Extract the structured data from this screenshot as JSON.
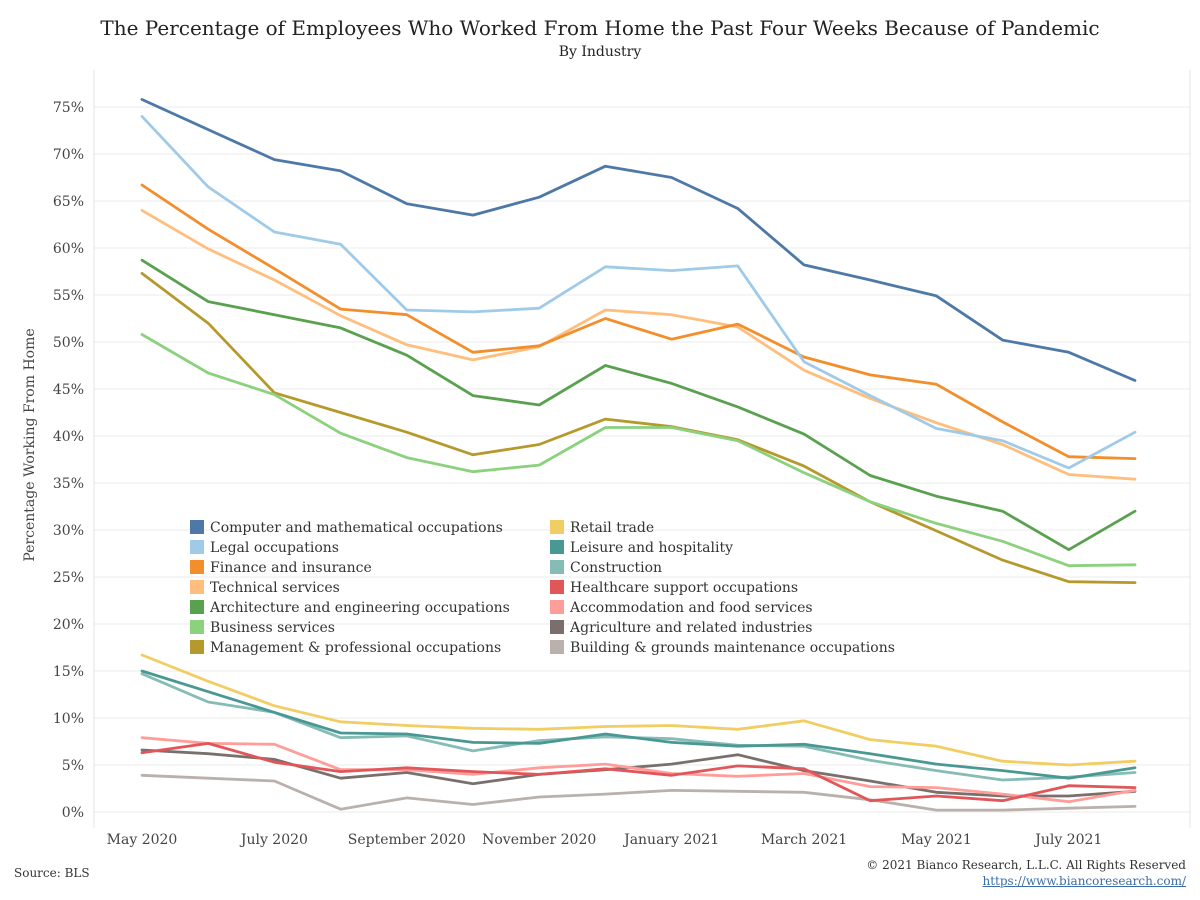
{
  "header": {
    "title": "The Percentage of Employees Who Worked From Home the Past Four Weeks Because of Pandemic",
    "subtitle": "By Industry"
  },
  "footer": {
    "source": "Source: BLS",
    "copyright": "© 2021 Bianco Research, L.L.C. All Rights Reserved",
    "url": "https://www.biancoresearch.com/"
  },
  "chart_data": {
    "type": "line",
    "title": "The Percentage of Employees Who Worked From Home the Past Four Weeks Because of Pandemic",
    "subtitle": "By Industry",
    "xlabel": "",
    "ylabel": "Percentage Working From Home",
    "x": [
      "2020-05",
      "2020-06",
      "2020-07",
      "2020-08",
      "2020-09",
      "2020-10",
      "2020-11",
      "2020-12",
      "2021-01",
      "2021-02",
      "2021-03",
      "2021-04",
      "2021-05",
      "2021-06",
      "2021-07",
      "2021-08"
    ],
    "x_tick_labels": [
      {
        "x": "2020-05",
        "label": "May 2020"
      },
      {
        "x": "2020-07",
        "label": "July 2020"
      },
      {
        "x": "2020-09",
        "label": "September 2020"
      },
      {
        "x": "2020-11",
        "label": "November 2020"
      },
      {
        "x": "2021-01",
        "label": "January 2021"
      },
      {
        "x": "2021-03",
        "label": "March 2021"
      },
      {
        "x": "2021-05",
        "label": "May 2021"
      },
      {
        "x": "2021-07",
        "label": "July 2021"
      }
    ],
    "y_ticks": [
      0,
      5,
      10,
      15,
      20,
      25,
      30,
      35,
      40,
      45,
      50,
      55,
      60,
      65,
      70,
      75
    ],
    "y_tick_labels": [
      "0%",
      "5%",
      "10%",
      "15%",
      "20%",
      "25%",
      "30%",
      "35%",
      "40%",
      "45%",
      "50%",
      "55%",
      "60%",
      "65%",
      "70%",
      "75%"
    ],
    "ylim": [
      0,
      80
    ],
    "grid": "horizontal",
    "legend_position": "center-left, two columns",
    "series": [
      {
        "name": "Computer and mathematical occupations",
        "color": "#4e79a7",
        "values": [
          75.8,
          72.6,
          69.4,
          68.2,
          64.7,
          63.5,
          65.4,
          68.7,
          67.5,
          64.2,
          58.2,
          56.6,
          54.9,
          50.2,
          48.9,
          45.9
        ]
      },
      {
        "name": "Legal occupations",
        "color": "#a0cbe8",
        "values": [
          74.0,
          66.5,
          61.7,
          60.4,
          53.4,
          53.2,
          53.6,
          58.0,
          57.6,
          58.1,
          47.9,
          44.3,
          40.8,
          39.5,
          36.6,
          40.4
        ]
      },
      {
        "name": "Finance and insurance",
        "color": "#f28e2b",
        "values": [
          66.7,
          62.0,
          57.8,
          53.5,
          52.9,
          48.9,
          49.6,
          52.5,
          50.3,
          51.9,
          48.4,
          46.5,
          45.5,
          41.5,
          37.8,
          37.6
        ]
      },
      {
        "name": "Technical services",
        "color": "#ffbe7d",
        "values": [
          64.0,
          59.9,
          56.6,
          52.8,
          49.7,
          48.1,
          49.5,
          53.4,
          52.9,
          51.6,
          47.0,
          44.0,
          41.4,
          39.1,
          35.9,
          35.4
        ]
      },
      {
        "name": "Architecture and engineering occupations",
        "color": "#59a14f",
        "values": [
          58.7,
          54.3,
          52.9,
          51.5,
          48.6,
          44.3,
          43.3,
          47.5,
          45.6,
          43.1,
          40.2,
          35.8,
          33.6,
          32.0,
          27.9,
          32.0
        ]
      },
      {
        "name": "Business services",
        "color": "#8cd17d",
        "values": [
          50.8,
          46.7,
          44.4,
          40.3,
          37.7,
          36.2,
          36.9,
          40.9,
          40.9,
          39.5,
          36.1,
          33.0,
          30.7,
          28.8,
          26.2,
          26.3
        ]
      },
      {
        "name": "Management & professional occupations",
        "color": "#b6992d",
        "values": [
          57.3,
          52.0,
          44.6,
          42.5,
          40.4,
          38.0,
          39.1,
          41.8,
          41.0,
          39.6,
          36.8,
          33.0,
          29.9,
          26.8,
          24.5,
          24.4
        ]
      },
      {
        "name": "Retail trade",
        "color": "#f1ce63",
        "values": [
          16.7,
          13.9,
          11.3,
          9.6,
          9.2,
          8.9,
          8.8,
          9.1,
          9.2,
          8.8,
          9.7,
          7.7,
          7.0,
          5.4,
          5.0,
          5.4
        ]
      },
      {
        "name": "Leisure and hospitality",
        "color": "#499894",
        "values": [
          15.0,
          12.8,
          10.6,
          8.4,
          8.3,
          7.4,
          7.3,
          8.3,
          7.4,
          7.0,
          7.2,
          6.2,
          5.1,
          4.4,
          3.6,
          4.7
        ]
      },
      {
        "name": "Construction",
        "color": "#86bcb6",
        "values": [
          14.7,
          11.7,
          10.6,
          7.9,
          8.1,
          6.5,
          7.6,
          8.0,
          7.8,
          7.1,
          7.0,
          5.5,
          4.4,
          3.4,
          3.7,
          4.2
        ]
      },
      {
        "name": "Healthcare support occupations",
        "color": "#e15759",
        "values": [
          6.3,
          7.3,
          5.3,
          4.3,
          4.7,
          4.3,
          4.0,
          4.6,
          3.9,
          4.9,
          4.6,
          1.2,
          1.7,
          1.2,
          2.8,
          2.6
        ]
      },
      {
        "name": "Accommodation and food services",
        "color": "#ff9d9a",
        "values": [
          7.9,
          7.3,
          7.2,
          4.5,
          4.5,
          4.0,
          4.7,
          5.1,
          4.1,
          3.8,
          4.1,
          2.7,
          2.6,
          1.9,
          1.1,
          2.3
        ]
      },
      {
        "name": "Agriculture and related industries",
        "color": "#79706e",
        "values": [
          6.6,
          6.2,
          5.6,
          3.6,
          4.2,
          3.0,
          4.0,
          4.5,
          5.1,
          6.1,
          4.4,
          3.3,
          2.1,
          1.7,
          1.7,
          2.2
        ]
      },
      {
        "name": "Building & grounds maintenance occupations",
        "color": "#bab0ac",
        "values": [
          3.9,
          3.6,
          3.3,
          0.3,
          1.5,
          0.8,
          1.6,
          1.9,
          2.3,
          2.2,
          2.1,
          1.3,
          0.2,
          0.2,
          0.4,
          0.6
        ]
      }
    ]
  }
}
